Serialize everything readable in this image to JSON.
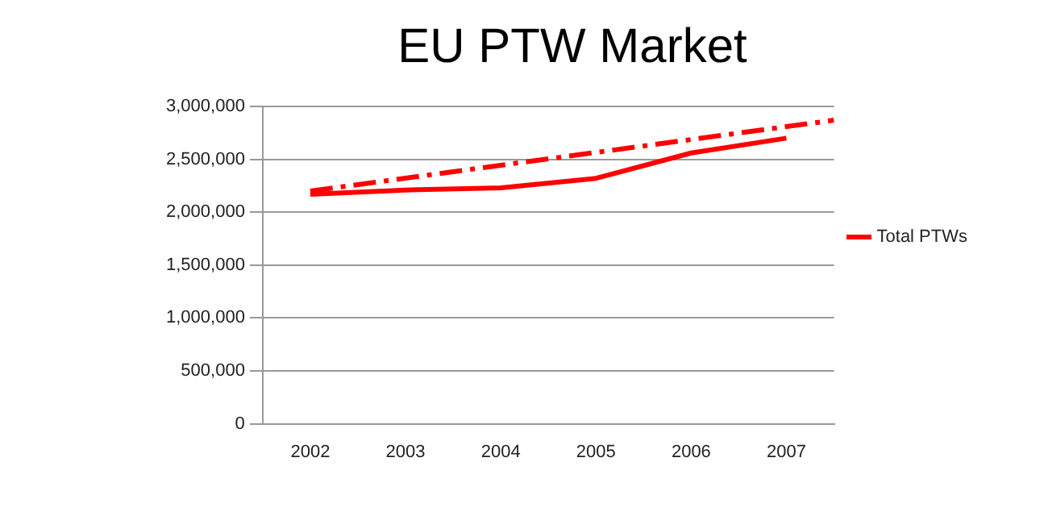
{
  "chart_data": {
    "type": "line",
    "title": "EU PTW Market",
    "x": [
      2002,
      2003,
      2004,
      2005,
      2006,
      2007
    ],
    "series": [
      {
        "name": "Total PTWs",
        "color": "#ff0000",
        "values": [
          2170000,
          2210000,
          2230000,
          2320000,
          2560000,
          2700000
        ],
        "line_style": "solid"
      },
      {
        "color": "#ff0000",
        "x": [
          2002,
          2007.5
        ],
        "values": [
          2200000,
          2870000
        ],
        "line_style": "dashdot"
      }
    ],
    "xlim": [
      2001.5,
      2007.5
    ],
    "xticks": [
      2002,
      2003,
      2004,
      2005,
      2006,
      2007
    ],
    "ylim": [
      0,
      3000000
    ],
    "yticks": [
      0,
      {
        "value": 500000,
        "label": "500,000"
      },
      {
        "value": 1000000,
        "label": "1,000,000"
      },
      {
        "value": 1500000,
        "label": "1,500,000"
      },
      {
        "value": 2000000,
        "label": "2,000,000"
      },
      {
        "value": 2500000,
        "label": "2,500,000"
      },
      {
        "value": 3000000,
        "label": "3,000,000"
      }
    ],
    "grid": "y",
    "legend": "right",
    "marker": "none"
  }
}
